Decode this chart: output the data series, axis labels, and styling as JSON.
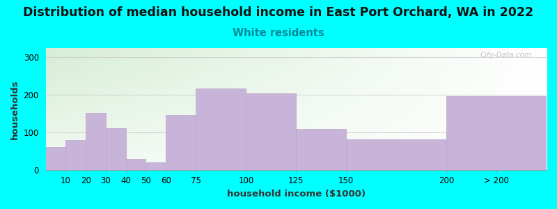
{
  "title": "Distribution of median household income in East Port Orchard, WA in 2022",
  "subtitle": "White residents",
  "xlabel": "household income ($1000)",
  "ylabel": "households",
  "background_color": "#00FFFF",
  "plot_bg_left": "#d8edda",
  "plot_bg_right": "#ffffff",
  "bar_color": "#c8b4d8",
  "bar_edge_color": "#b8a4c8",
  "bin_edges": [
    0,
    10,
    20,
    30,
    40,
    50,
    60,
    75,
    100,
    125,
    150,
    200,
    250
  ],
  "values": [
    62,
    80,
    152,
    112,
    30,
    22,
    148,
    218,
    205,
    110,
    82,
    197
  ],
  "tick_labels": [
    "10",
    "20",
    "30",
    "40",
    "50",
    "60",
    "75",
    "100",
    "125",
    "150",
    "200",
    "> 200"
  ],
  "tick_positions": [
    10,
    20,
    30,
    40,
    50,
    60,
    75,
    100,
    125,
    150,
    200,
    225
  ],
  "ylim": [
    0,
    325
  ],
  "xlim": [
    0,
    250
  ],
  "yticks": [
    0,
    100,
    200,
    300
  ],
  "grid_color": "#cccccc",
  "title_fontsize": 12.5,
  "subtitle_fontsize": 10.5,
  "subtitle_color": "#008899",
  "axis_label_fontsize": 9.5,
  "tick_fontsize": 8.5,
  "watermark_text": "City-Data.com",
  "watermark_color": "#b8b8b8"
}
